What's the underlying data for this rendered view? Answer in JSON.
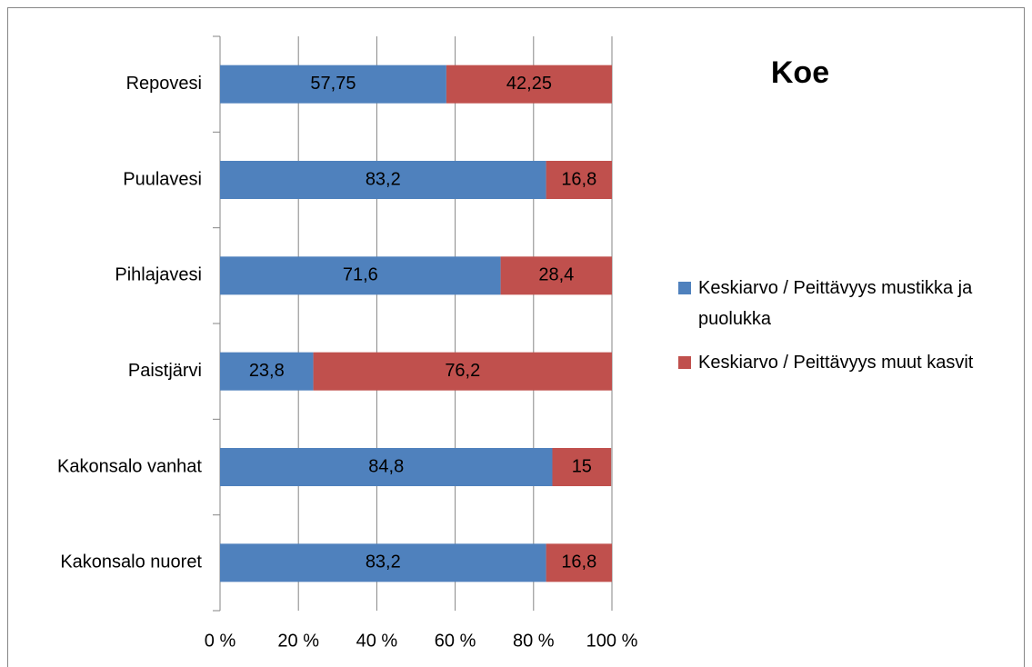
{
  "chart_data": {
    "type": "bar",
    "orientation": "horizontal",
    "stacked": true,
    "title": "Koe",
    "categories": [
      "Repovesi",
      "Puulavesi",
      "Pihlajavesi",
      "Paistjärvi",
      "Kakonsalo vanhat",
      "Kakonsalo nuoret"
    ],
    "series": [
      {
        "name": "Keskiarvo / Peittävyys mustikka ja puolukka",
        "color": "#4f81bd",
        "values": [
          57.75,
          83.2,
          71.6,
          23.8,
          84.8,
          83.2
        ],
        "value_labels": [
          "57,75",
          "83,2",
          "71,6",
          "23,8",
          "84,8",
          "83,2"
        ]
      },
      {
        "name": "Keskiarvo / Peittävyys muut kasvit",
        "color": "#c0504d",
        "values": [
          42.25,
          16.8,
          28.4,
          76.2,
          15,
          16.8
        ],
        "value_labels": [
          "42,25",
          "16,8",
          "28,4",
          "76,2",
          "15",
          "16,8"
        ]
      }
    ],
    "xlim": [
      0,
      100
    ],
    "xticks": [
      {
        "value": 0,
        "label": "0 %"
      },
      {
        "value": 20,
        "label": "20 %"
      },
      {
        "value": 40,
        "label": "40 %"
      },
      {
        "value": 60,
        "label": "60 %"
      },
      {
        "value": 80,
        "label": "80 %"
      },
      {
        "value": 100,
        "label": "100 %"
      }
    ],
    "grid": true,
    "legend": "right"
  }
}
